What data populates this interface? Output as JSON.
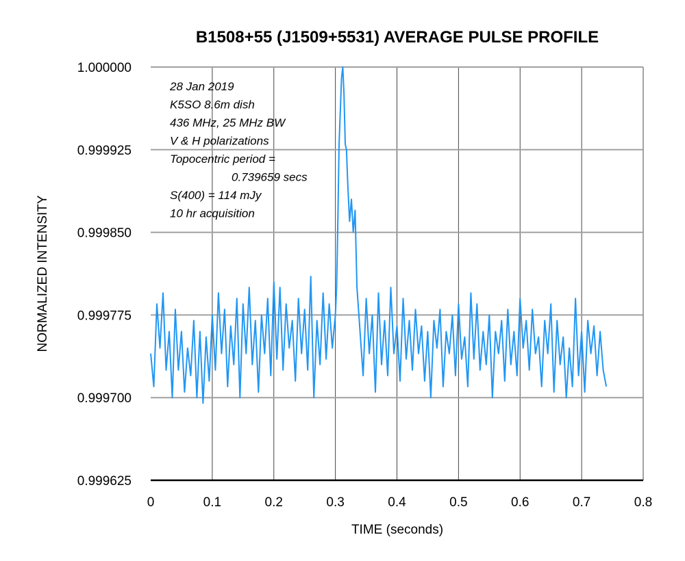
{
  "chart_data": {
    "type": "line",
    "title": "B1508+55 (J1509+5531) AVERAGE PULSE PROFILE",
    "xlabel": "TIME (seconds)",
    "ylabel": "NORMALIZED INTENSITY",
    "xlim": [
      0,
      0.8
    ],
    "ylim": [
      0.999625,
      1.0
    ],
    "x_ticks": [
      "0",
      "0.1",
      "0.2",
      "0.3",
      "0.4",
      "0.5",
      "0.6",
      "0.7",
      "0.8"
    ],
    "y_ticks": [
      "0.999625",
      "0.999700",
      "0.999775",
      "0.999850",
      "0.999925",
      "1.000000"
    ],
    "grid": true,
    "line_color": "#2196F3",
    "annotation": [
      "28 Jan 2019",
      "K5SO 8.6m dish",
      "436 MHz, 25 MHz BW",
      "V & H polarizations",
      "Topocentric period =",
      "0.739659 secs",
      "S(400) = 114 mJy",
      "10 hr acquisition"
    ],
    "series": [
      {
        "x": [
          0.0,
          0.005,
          0.01,
          0.015,
          0.02,
          0.025,
          0.03,
          0.035,
          0.04,
          0.045,
          0.05,
          0.055,
          0.06,
          0.065,
          0.07,
          0.075,
          0.08,
          0.085,
          0.09,
          0.095,
          0.1,
          0.105,
          0.11,
          0.115,
          0.12,
          0.125,
          0.13,
          0.135,
          0.14,
          0.145,
          0.15,
          0.155,
          0.16,
          0.165,
          0.17,
          0.175,
          0.18,
          0.185,
          0.19,
          0.195,
          0.2,
          0.205,
          0.21,
          0.215,
          0.22,
          0.225,
          0.23,
          0.235,
          0.24,
          0.245,
          0.25,
          0.255,
          0.26,
          0.265,
          0.27,
          0.275,
          0.28,
          0.285,
          0.29,
          0.295,
          0.3,
          0.302,
          0.304,
          0.306,
          0.308,
          0.31,
          0.312,
          0.314,
          0.316,
          0.318,
          0.32,
          0.323,
          0.326,
          0.329,
          0.332,
          0.335,
          0.34,
          0.345,
          0.35,
          0.355,
          0.36,
          0.365,
          0.37,
          0.375,
          0.38,
          0.385,
          0.39,
          0.395,
          0.4,
          0.405,
          0.41,
          0.415,
          0.42,
          0.425,
          0.43,
          0.435,
          0.44,
          0.445,
          0.45,
          0.455,
          0.46,
          0.465,
          0.47,
          0.475,
          0.48,
          0.485,
          0.49,
          0.495,
          0.5,
          0.505,
          0.51,
          0.515,
          0.52,
          0.525,
          0.53,
          0.535,
          0.54,
          0.545,
          0.55,
          0.555,
          0.56,
          0.565,
          0.57,
          0.575,
          0.58,
          0.585,
          0.59,
          0.595,
          0.6,
          0.605,
          0.61,
          0.615,
          0.62,
          0.625,
          0.63,
          0.635,
          0.64,
          0.645,
          0.65,
          0.655,
          0.66,
          0.665,
          0.67,
          0.675,
          0.68,
          0.685,
          0.69,
          0.695,
          0.7,
          0.705,
          0.71,
          0.715,
          0.72,
          0.725,
          0.73,
          0.735,
          0.74
        ],
        "y": [
          0.99974,
          0.99971,
          0.999785,
          0.999745,
          0.999795,
          0.999725,
          0.99976,
          0.9997,
          0.99978,
          0.999725,
          0.99976,
          0.999705,
          0.999745,
          0.99972,
          0.99977,
          0.9997,
          0.99976,
          0.999695,
          0.999755,
          0.999715,
          0.999775,
          0.999725,
          0.999795,
          0.99974,
          0.99978,
          0.99971,
          0.999765,
          0.99973,
          0.99979,
          0.9997,
          0.999785,
          0.99974,
          0.9998,
          0.99973,
          0.99977,
          0.999705,
          0.999775,
          0.99974,
          0.99979,
          0.99972,
          0.999805,
          0.999735,
          0.9998,
          0.999725,
          0.999785,
          0.999745,
          0.99977,
          0.999715,
          0.99979,
          0.99974,
          0.99978,
          0.999725,
          0.99981,
          0.9997,
          0.99977,
          0.99973,
          0.999795,
          0.999735,
          0.999785,
          0.999745,
          0.999775,
          0.9998,
          0.99986,
          0.99993,
          0.99996,
          0.99999,
          1.0,
          0.999975,
          0.99993,
          0.999925,
          0.999895,
          0.99986,
          0.99988,
          0.99985,
          0.99987,
          0.9998,
          0.99976,
          0.99972,
          0.99979,
          0.99974,
          0.999775,
          0.999705,
          0.999795,
          0.99973,
          0.99977,
          0.99972,
          0.9998,
          0.99974,
          0.999765,
          0.999715,
          0.99979,
          0.999735,
          0.99977,
          0.999725,
          0.99978,
          0.99974,
          0.999765,
          0.999715,
          0.99976,
          0.9997,
          0.99977,
          0.999745,
          0.99978,
          0.99971,
          0.99976,
          0.99974,
          0.999775,
          0.99972,
          0.999785,
          0.999735,
          0.999755,
          0.99971,
          0.999795,
          0.999735,
          0.999785,
          0.999725,
          0.99976,
          0.99973,
          0.999775,
          0.9997,
          0.99976,
          0.99974,
          0.99977,
          0.999715,
          0.99978,
          0.99973,
          0.99976,
          0.99972,
          0.99979,
          0.999745,
          0.99977,
          0.999725,
          0.99978,
          0.99974,
          0.999755,
          0.99971,
          0.99977,
          0.99974,
          0.999785,
          0.999705,
          0.99977,
          0.99973,
          0.999755,
          0.9997,
          0.999745,
          0.99971,
          0.99979,
          0.99972,
          0.99976,
          0.999705,
          0.99977,
          0.99974,
          0.999765,
          0.99972,
          0.99976,
          0.999725,
          0.99971
        ]
      }
    ]
  }
}
